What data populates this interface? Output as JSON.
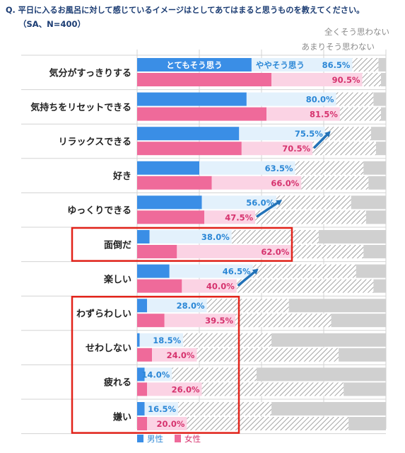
{
  "question": "Q. 平日に入るお風呂に対して感じているイメージはとしてあてはまると思うものを教えてください。",
  "sample": "（SA、N=400）",
  "colors": {
    "title": "#1b3c73",
    "male_strong": "#3a8ee6",
    "male_light": "#e3f1fc",
    "female_strong": "#ef6a9a",
    "female_light": "#fbd3e4",
    "hatch": "#9a9a9a",
    "value_male": "#2b87d6",
    "value_female": "#d6336e",
    "arrow": "#2272b8",
    "highlight": "#e2231a",
    "grid": "#d3d3d3"
  },
  "chart_data": {
    "type": "bar",
    "orientation": "horizontal-stacked",
    "xlim": [
      0,
      100
    ],
    "categories": [
      "気分がすっきりする",
      "気持ちをリセットできる",
      "リラックスできる",
      "好き",
      "ゆっくりできる",
      "面倒だ",
      "楽しい",
      "わずらわしい",
      "せわしない",
      "疲れる",
      "嫌い"
    ],
    "segment_labels": {
      "strong": "とてもそう思う",
      "somewhat": "ややそう思う",
      "not_really": "あまりそう思わない",
      "not_at_all": "全くそう思わない"
    },
    "legend": [
      "男性",
      "女性"
    ],
    "series": [
      {
        "name": "男性",
        "top2": [
          86.5,
          80.0,
          75.5,
          63.5,
          56.0,
          38.0,
          46.5,
          28.0,
          18.5,
          14.0,
          16.5
        ],
        "top2_labels": [
          "86.5%",
          "80.0%",
          "75.5%",
          "63.5%",
          "56.0%",
          "38.0%",
          "46.5%",
          "28.0%",
          "18.5%",
          "14.0%",
          "16.5%"
        ],
        "strong": [
          46,
          44,
          41,
          25,
          26,
          5,
          13,
          4,
          1,
          3,
          3
        ],
        "not_really_end": [
          97,
          95,
          94,
          91,
          86,
          73,
          88,
          61,
          54,
          48,
          54
        ]
      },
      {
        "name": "女性",
        "top2": [
          90.5,
          81.5,
          70.5,
          66.0,
          47.5,
          62.0,
          40.0,
          39.5,
          24.0,
          26.0,
          20.0
        ],
        "top2_labels": [
          "90.5%",
          "81.5%",
          "70.5%",
          "66.0%",
          "47.5%",
          "62.0%",
          "40.0%",
          "39.5%",
          "24.0%",
          "26.0%",
          "20.0%"
        ],
        "strong": [
          54,
          52,
          42,
          30,
          27,
          16,
          18,
          11,
          6,
          4,
          4
        ],
        "not_really_end": [
          98,
          98,
          96,
          93,
          92,
          91,
          95,
          78,
          81,
          83,
          85
        ]
      }
    ],
    "trend_arrows": [
      "リラックスできる",
      "ゆっくりできる",
      "楽しい"
    ],
    "highlighted": [
      "面倒だ",
      "わずらわしい",
      "せわしない",
      "疲れる",
      "嫌い"
    ]
  }
}
